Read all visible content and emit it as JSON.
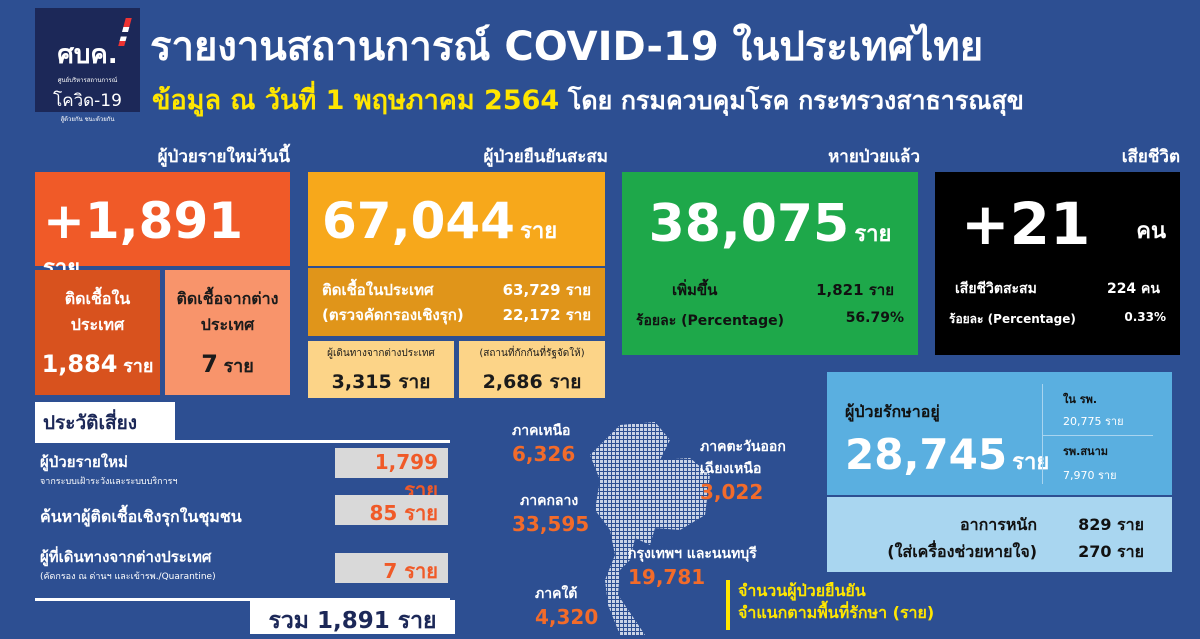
{
  "logo": {
    "text": "ศบค.",
    "subtitle": "ศูนย์บริหารสถานการณ์",
    "name": "โควิด-19",
    "tagline": "สู้ด้วยกัน ชนะด้วยกัน"
  },
  "header": {
    "title": "รายงานสถานการณ์ COVID-19 ในประเทศไทย",
    "date": "ข้อมูล ณ วันที่ 1 พฤษภาคม 2564",
    "source": "โดย กรมควบคุมโรค กระทรวงสาธารณสุข"
  },
  "new_cases": {
    "label": "ผู้ป่วยรายใหม่วันนี้",
    "value": "+1,891",
    "unit": "ราย",
    "domestic_label": "ติดเชื้อในประเทศ",
    "domestic_value": "1,884",
    "domestic_unit": "ราย",
    "imported_label": "ติดเชื้อจากต่างประเทศ",
    "imported_value": "7",
    "imported_unit": "ราย"
  },
  "cumulative": {
    "label": "ผู้ป่วยยืนยันสะสม",
    "value": "67,044",
    "unit": "ราย",
    "domestic_label": "ติดเชื้อในประเทศ",
    "domestic_value": "63,729 ราย",
    "active_label": "(ตรวจคัดกรองเชิงรุก)",
    "active_value": "22,172 ราย",
    "travelers_label": "ผู้เดินทางจากต่างประเทศ",
    "travelers_value": "3,315 ราย",
    "quarantine_label": "(สถานที่กักกันที่รัฐจัดให้)",
    "quarantine_value": "2,686 ราย"
  },
  "recovered": {
    "label": "หายป่วยแล้ว",
    "value": "38,075",
    "unit": "ราย",
    "increase_label": "เพิ่มขึ้น",
    "increase_value": "1,821 ราย",
    "percent_label": "ร้อยละ (Percentage)",
    "percent_value": "56.79%"
  },
  "deaths": {
    "label": "เสียชีวิต",
    "value": "+21",
    "unit": "คน",
    "total_label": "เสียชีวิตสะสม",
    "total_value": "224 คน",
    "percent_label": "ร้อยละ (Percentage)",
    "percent_value": "0.33%"
  },
  "risk": {
    "title": "ประวัติเสี่ยง",
    "items": [
      {
        "label": "ผู้ป่วยรายใหม่",
        "sub": "จากระบบเฝ้าระวังและระบบบริการฯ",
        "value": "1,799 ราย"
      },
      {
        "label": "ค้นหาผู้ติดเชื้อเชิงรุกในชุมชน",
        "sub": "",
        "value": "85 ราย"
      },
      {
        "label": "ผู้ที่เดินทางจากต่างประเทศ",
        "sub": "(คัดกรอง ณ ด่านฯ และเข้ารพ./Quarantine)",
        "value": "7 ราย"
      }
    ],
    "total": "รวม 1,891 ราย"
  },
  "regions": {
    "north": {
      "label": "ภาคเหนือ",
      "value": "6,326"
    },
    "northeast": {
      "label": "ภาคตะวันออกเฉียงเหนือ",
      "value": "3,022"
    },
    "central": {
      "label": "ภาคกลาง",
      "value": "33,595"
    },
    "bangkok": {
      "label": "กรุงเทพฯ และนนทบุรี",
      "value": "19,781"
    },
    "south": {
      "label": "ภาคใต้",
      "value": "4,320"
    },
    "caption1": "จำนวนผู้ป่วยยืนยัน",
    "caption2": "จำแนกตามพื้นที่รักษา (ราย)"
  },
  "treatment": {
    "label": "ผู้ป่วยรักษาอยู่",
    "value": "28,745",
    "unit": "ราย",
    "hospital_label": "ใน รพ.",
    "hospital_value": "20,775 ราย",
    "field_label": "รพ.สนาม",
    "field_value": "7,970 ราย",
    "severe_label": "อาการหนัก",
    "severe_value": "829 ราย",
    "vent_label": "(ใส่เครื่องช่วยหายใจ)",
    "vent_value": "270 ราย"
  },
  "colors": {
    "background": "#2d4f92",
    "new": "#f05a28",
    "cumulative": "#f7a81b",
    "recovered": "#1ea84a",
    "deaths": "#000000",
    "treatment": "#5aafe0",
    "highlight": "#ffe600"
  }
}
